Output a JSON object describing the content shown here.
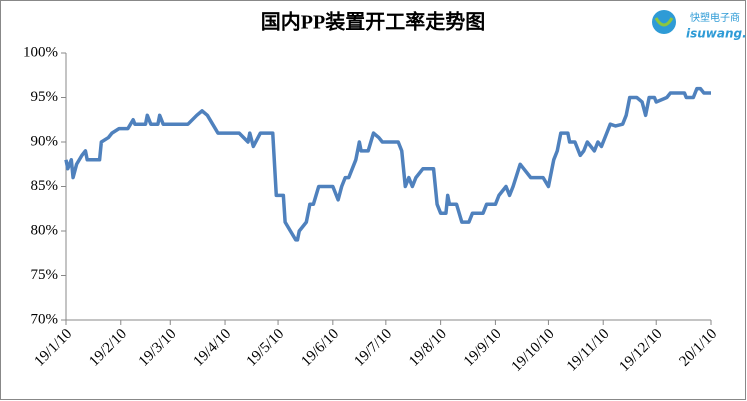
{
  "chart_data": {
    "type": "line",
    "title": "国内PP装置开工率走势图",
    "watermark": [
      "快塑电子商",
      "isuwang.c"
    ],
    "xlim": [
      "19/1/10",
      "20/1/10"
    ],
    "xticks": [
      "19/1/10",
      "19/2/10",
      "19/3/10",
      "19/4/10",
      "19/5/10",
      "19/6/10",
      "19/7/10",
      "19/8/10",
      "19/9/10",
      "19/10/10",
      "19/11/10",
      "19/12/10",
      "20/1/10"
    ],
    "ylim": [
      70,
      100
    ],
    "yticks": [
      {
        "value": 70,
        "label": "70%"
      },
      {
        "value": 75,
        "label": "75%"
      },
      {
        "value": 80,
        "label": "80%"
      },
      {
        "value": 85,
        "label": "85%"
      },
      {
        "value": 90,
        "label": "90%"
      },
      {
        "value": 95,
        "label": "95%"
      },
      {
        "value": 100,
        "label": "100%"
      }
    ],
    "grid": false,
    "series": [
      {
        "color": "#4f81bd",
        "x": [
          "19/1/10",
          "19/1/11",
          "19/1/13",
          "19/1/14",
          "19/1/16",
          "19/1/19",
          "19/1/21",
          "19/1/22",
          "19/1/29",
          "19/1/30",
          "19/2/3",
          "19/2/5",
          "19/2/9",
          "19/2/14",
          "19/2/17",
          "19/2/18",
          "19/2/24",
          "19/2/25",
          "19/2/27",
          "19/3/3",
          "19/3/4",
          "19/3/6",
          "19/3/20",
          "19/3/25",
          "19/3/28",
          "19/3/31",
          "19/4/6",
          "19/4/18",
          "19/4/23",
          "19/4/24",
          "19/4/26",
          "19/4/30",
          "19/5/7",
          "19/5/9",
          "19/5/13",
          "19/5/14",
          "19/5/17",
          "19/5/20",
          "19/5/21",
          "19/5/22",
          "19/5/26",
          "19/5/28",
          "19/5/30",
          "19/6/2",
          "19/6/10",
          "19/6/13",
          "19/6/15",
          "19/6/17",
          "19/6/19",
          "19/6/23",
          "19/6/25",
          "19/6/26",
          "19/6/30",
          "19/7/3",
          "19/7/6",
          "19/7/8",
          "19/7/17",
          "19/7/19",
          "19/7/21",
          "19/7/23",
          "19/7/25",
          "19/7/27",
          "19/7/31",
          "19/8/6",
          "19/8/8",
          "19/8/10",
          "19/8/13",
          "19/8/14",
          "19/8/15",
          "19/8/19",
          "19/8/22",
          "19/8/26",
          "19/8/28",
          "19/9/3",
          "19/9/5",
          "19/9/10",
          "19/9/12",
          "19/9/16",
          "19/9/18",
          "19/9/20",
          "19/9/24",
          "19/9/26",
          "19/9/30",
          "19/10/7",
          "19/10/10",
          "19/10/11",
          "19/10/13",
          "19/10/15",
          "19/10/17",
          "19/10/21",
          "19/10/22",
          "19/10/25",
          "19/10/28",
          "19/10/30",
          "19/11/1",
          "19/11/5",
          "19/11/7",
          "19/11/9",
          "19/11/12",
          "19/11/14",
          "19/11/17",
          "19/11/21",
          "19/11/23",
          "19/11/25",
          "19/11/29",
          "19/12/2",
          "19/12/4",
          "19/12/6",
          "19/12/9",
          "19/12/10",
          "19/12/16",
          "19/12/18",
          "19/12/26",
          "19/12/27",
          "19/12/31",
          "20/1/2",
          "20/1/4",
          "20/1/6",
          "20/1/10"
        ],
        "values": [
          88,
          87,
          88,
          86,
          87.5,
          88.5,
          89,
          88,
          88,
          90,
          90.5,
          91,
          91.5,
          91.5,
          92.5,
          92,
          92,
          93,
          92,
          92,
          93,
          92,
          92,
          93,
          93.5,
          93,
          91,
          91,
          90,
          91,
          89.5,
          91,
          91,
          84,
          84,
          81,
          80,
          79,
          79,
          80,
          81,
          83,
          83,
          85,
          85,
          83.5,
          85,
          86,
          86,
          88,
          90,
          89,
          89,
          91,
          90.5,
          90,
          90,
          89,
          85,
          86,
          85,
          86,
          87,
          87,
          83,
          82,
          82,
          84,
          83,
          83,
          81,
          81,
          82,
          82,
          83,
          83,
          84,
          85,
          84,
          85,
          87.5,
          87,
          86,
          86,
          85,
          86,
          88,
          89,
          91,
          91,
          90,
          90,
          88.5,
          89,
          90,
          89,
          90,
          89.5,
          91,
          92,
          91.8,
          92,
          93,
          95,
          95,
          94.5,
          93,
          95,
          95,
          94.5,
          95,
          95.5,
          95.5,
          95,
          95,
          96,
          96,
          95.5,
          95.5
        ]
      }
    ]
  }
}
